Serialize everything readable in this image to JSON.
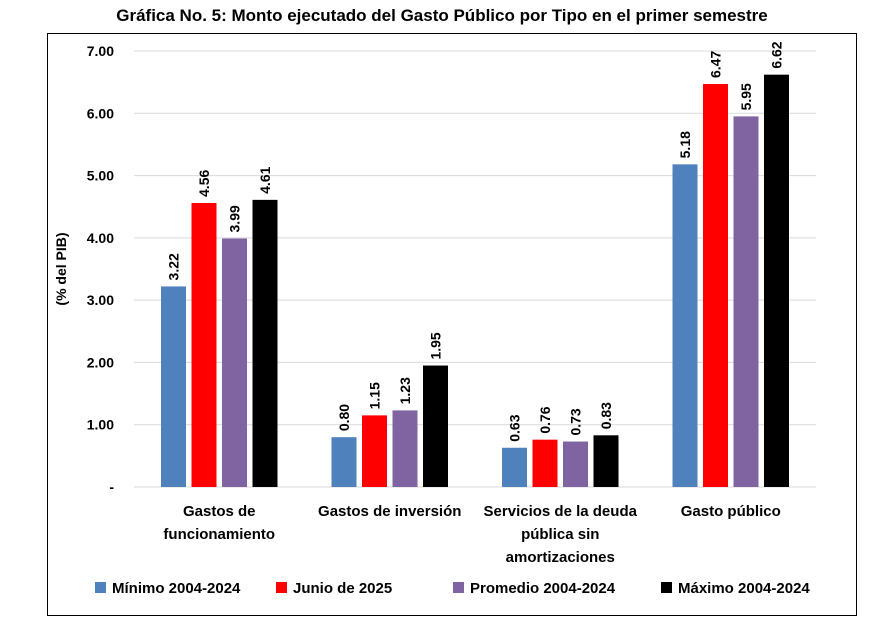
{
  "chart_data": {
    "type": "bar",
    "title": "Gráfica No. 5: Monto ejecutado del Gasto Público por Tipo en el primer semestre",
    "ylabel": "(% del PIB)",
    "xlabel": "",
    "ylim": [
      0,
      7
    ],
    "yticks": [
      "-",
      "1.00",
      "2.00",
      "3.00",
      "4.00",
      "5.00",
      "6.00",
      "7.00"
    ],
    "grid": true,
    "legend_position": "bottom",
    "categories": [
      [
        "Gastos de",
        "funcionamiento"
      ],
      [
        "Gastos de inversión"
      ],
      [
        "Servicios de la deuda",
        "pública sin",
        "amortizaciones"
      ],
      [
        "Gasto público"
      ]
    ],
    "series": [
      {
        "name": "Mínimo 2004-2024",
        "color": "#4F81BD",
        "values": [
          3.22,
          0.8,
          0.63,
          5.18
        ],
        "labels": [
          "3.22",
          "0.80",
          "0.63",
          "5.18"
        ]
      },
      {
        "name": "Junio de 2025",
        "color": "#FF0000",
        "values": [
          4.56,
          1.15,
          0.76,
          6.47
        ],
        "labels": [
          "4.56",
          "1.15",
          "0.76",
          "6.47"
        ]
      },
      {
        "name": "Promedio 2004-2024",
        "color": "#8064A2",
        "values": [
          3.99,
          1.23,
          0.73,
          5.95
        ],
        "labels": [
          "3.99",
          "1.23",
          "0.73",
          "5.95"
        ]
      },
      {
        "name": "Máximo 2004-2024",
        "color": "#000000",
        "values": [
          4.61,
          1.95,
          0.83,
          6.62
        ],
        "labels": [
          "4.61",
          "1.95",
          "0.83",
          "6.62"
        ]
      }
    ]
  }
}
